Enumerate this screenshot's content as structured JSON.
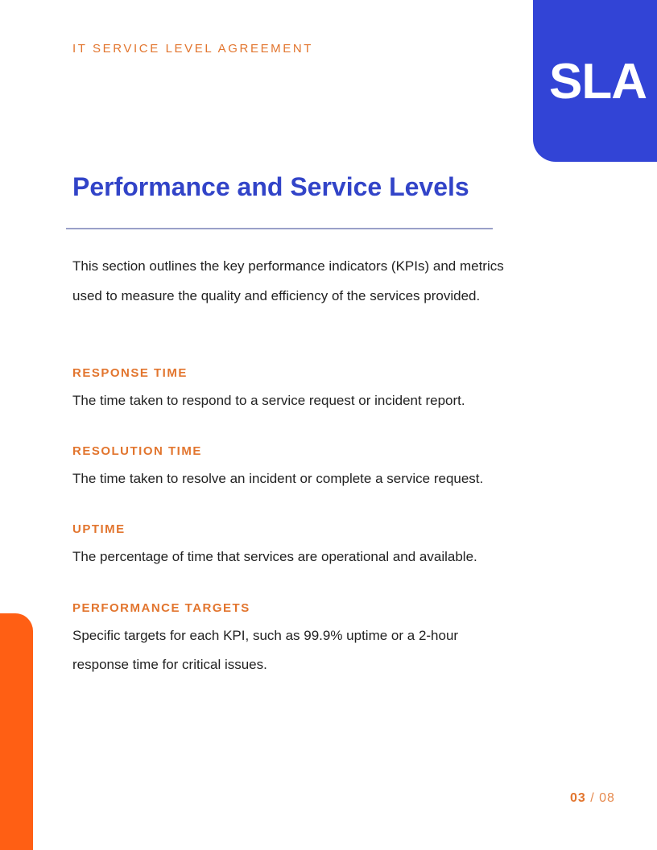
{
  "header": {
    "eyebrow": "IT SERVICE LEVEL AGREEMENT",
    "badge": "SLA"
  },
  "title": "Performance and Service Levels",
  "intro": "This section outlines the key performance indicators (KPIs) and metrics used to measure the quality and efficiency of the services provided.",
  "items": [
    {
      "heading": "RESPONSE TIME",
      "text": "The time taken to respond to a service request or incident report."
    },
    {
      "heading": "RESOLUTION TIME",
      "text": "The time taken to resolve an incident or complete a service request."
    },
    {
      "heading": "UPTIME",
      "text": "The percentage of time that services are operational and available."
    },
    {
      "heading": "PERFORMANCE TARGETS",
      "text": "Specific targets for each KPI, such as 99.9% uptime or a 2-hour response time for critical issues."
    }
  ],
  "pager": {
    "current": "03",
    "separator": " / ",
    "total": "08"
  },
  "colors": {
    "accent_blue": "#3244d6",
    "accent_orange": "#ff5f14",
    "heading_orange": "#e2752e"
  }
}
